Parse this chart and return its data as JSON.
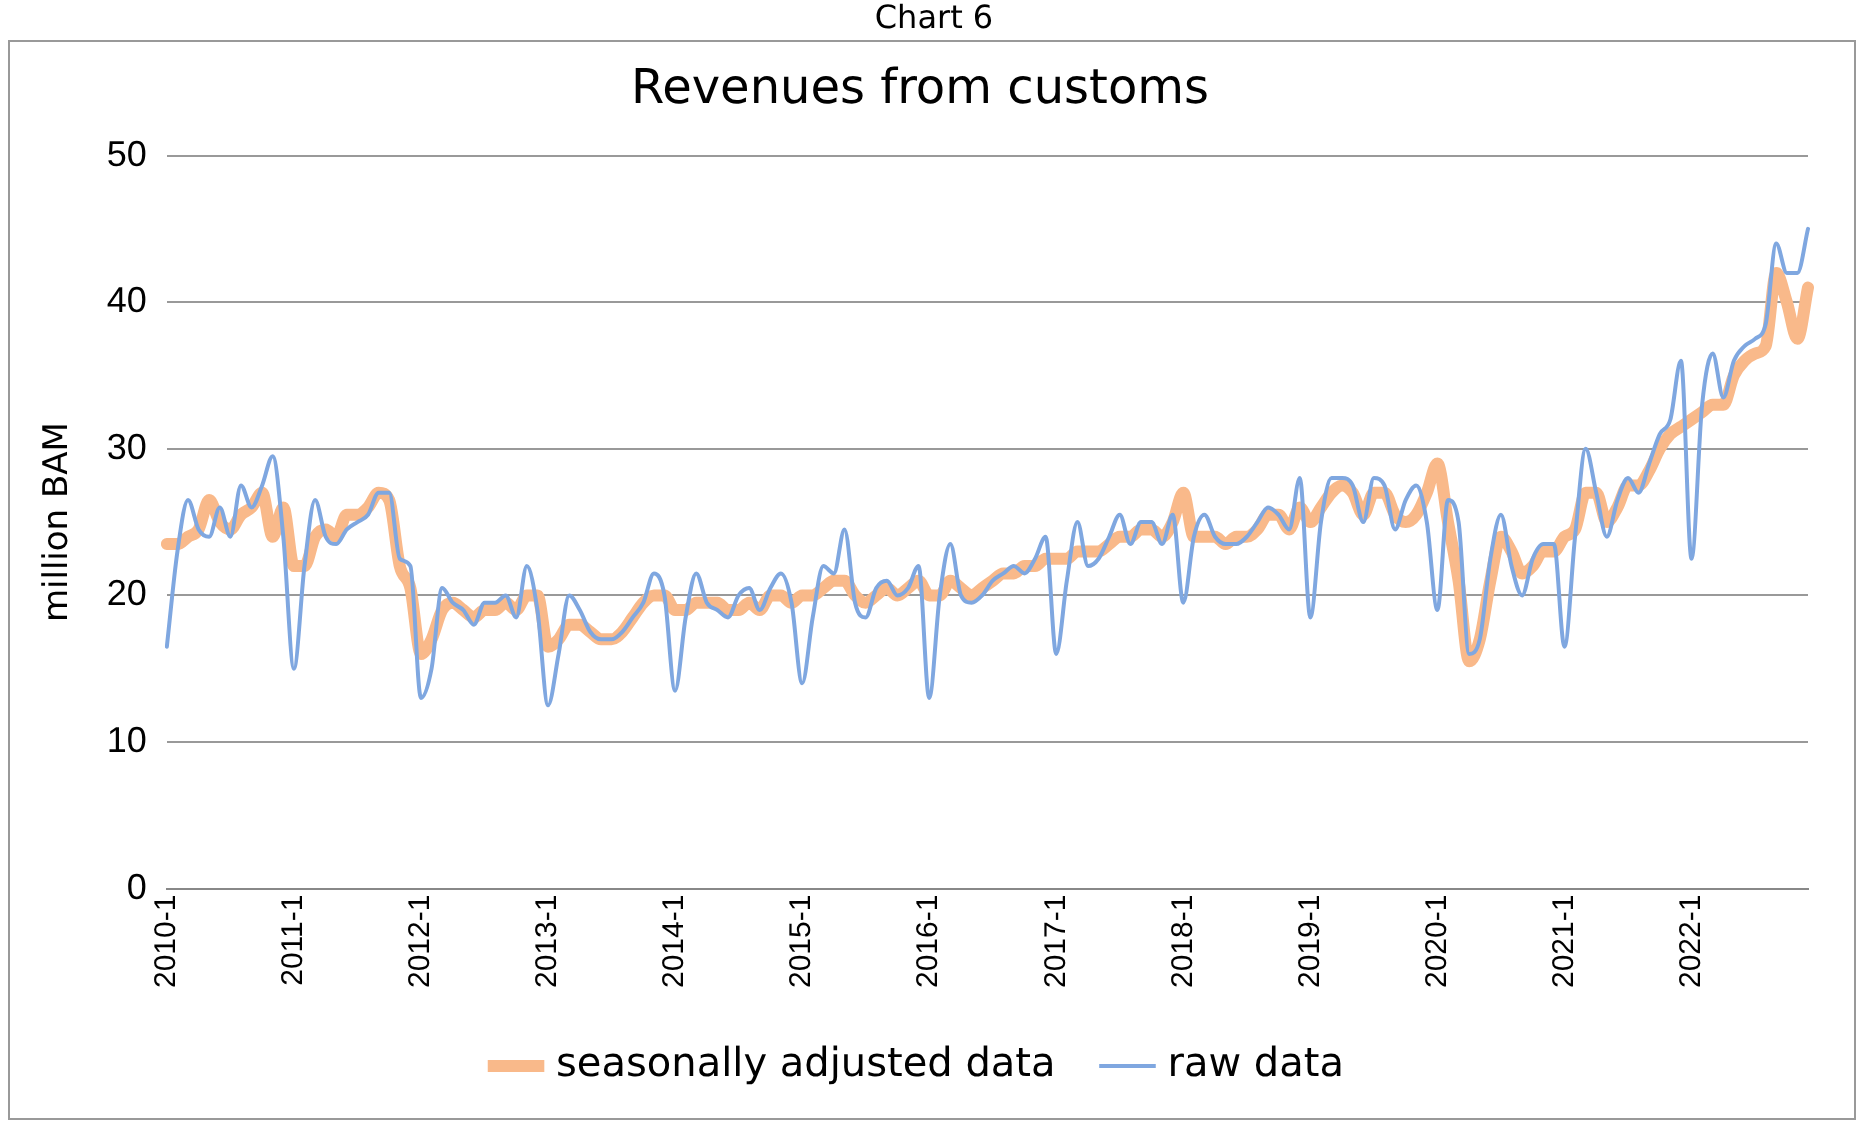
{
  "chart_data": {
    "type": "line",
    "title": "Revenues from customs",
    "ylabel": "million BAM",
    "annotations": [
      "Chart 6"
    ],
    "categories": [
      "2010-1",
      null,
      null,
      null,
      null,
      null,
      null,
      null,
      null,
      null,
      null,
      null,
      "2011-1",
      null,
      null,
      null,
      null,
      null,
      null,
      null,
      null,
      null,
      null,
      null,
      "2012-1",
      null,
      null,
      null,
      null,
      null,
      null,
      null,
      null,
      null,
      null,
      null,
      "2013-1",
      null,
      null,
      null,
      null,
      null,
      null,
      null,
      null,
      null,
      null,
      null,
      "2014-1",
      null,
      null,
      null,
      null,
      null,
      null,
      null,
      null,
      null,
      null,
      null,
      "2015-1",
      null,
      null,
      null,
      null,
      null,
      null,
      null,
      null,
      null,
      null,
      null,
      "2016-1",
      null,
      null,
      null,
      null,
      null,
      null,
      null,
      null,
      null,
      null,
      null,
      "2017-1",
      null,
      null,
      null,
      null,
      null,
      null,
      null,
      null,
      null,
      null,
      null,
      "2018-1",
      null,
      null,
      null,
      null,
      null,
      null,
      null,
      null,
      null,
      null,
      null,
      "2019-1",
      null,
      null,
      null,
      null,
      null,
      null,
      null,
      null,
      null,
      null,
      null,
      "2020-1",
      null,
      null,
      null,
      null,
      null,
      null,
      null,
      null,
      null,
      null,
      null,
      "2021-1",
      null,
      null,
      null,
      null,
      null,
      null,
      null,
      null,
      null,
      null,
      null,
      "2022-1",
      null,
      null,
      null,
      null,
      null,
      null,
      null,
      null,
      null,
      null,
      null
    ],
    "series": [
      {
        "name": "seasonally adjusted data",
        "color": "#f9b98a",
        "values": [
          23.5,
          23.5,
          24,
          24.5,
          26.5,
          25,
          24.5,
          25.5,
          26,
          27,
          24,
          26,
          22,
          22,
          24,
          24.5,
          24,
          25.5,
          25.5,
          26,
          27,
          26.5,
          22,
          20.5,
          16,
          17,
          19,
          19.5,
          19,
          18.5,
          19,
          19,
          19.5,
          19,
          20,
          20,
          16.5,
          17,
          18,
          18,
          17.5,
          17,
          17,
          17.5,
          18.5,
          19.5,
          20,
          20,
          19,
          19,
          19.5,
          19.5,
          19.5,
          19,
          19,
          19.5,
          19,
          20,
          20,
          19.5,
          20,
          20,
          20.5,
          21,
          21,
          20,
          19.5,
          20,
          20.5,
          20,
          20.5,
          21,
          20,
          20,
          21,
          20.5,
          20,
          20.5,
          21,
          21.5,
          21.5,
          22,
          22,
          22.5,
          22.5,
          22.5,
          23,
          23,
          23,
          23.5,
          24,
          24,
          24.5,
          24.5,
          24,
          25,
          27,
          24,
          24,
          24,
          23.5,
          24,
          24,
          24.5,
          25.5,
          25.5,
          24.5,
          26,
          25,
          26,
          27,
          27.5,
          27,
          25.5,
          27,
          27,
          25.5,
          25,
          25.5,
          27,
          29,
          25,
          21,
          15.5,
          17,
          21,
          24,
          23,
          21.5,
          22,
          23,
          23,
          24,
          24.5,
          27,
          27,
          25,
          26,
          27.5,
          27.5,
          28.5,
          30,
          31,
          31.5,
          32,
          32.5,
          33,
          33,
          35,
          36,
          36.5,
          37,
          42,
          40,
          37.5,
          41
        ]
      },
      {
        "name": "raw data",
        "color": "#7fa7e0",
        "values": [
          16.5,
          23,
          26.5,
          24.5,
          24,
          26,
          24,
          27.5,
          26,
          27.5,
          29.5,
          24,
          15,
          22,
          26.5,
          24,
          23.5,
          24.5,
          25,
          25.5,
          27,
          27,
          22.5,
          22,
          13,
          15,
          20.5,
          19.5,
          19,
          18,
          19.5,
          19.5,
          20,
          18.5,
          22,
          19,
          12.5,
          16,
          20,
          19,
          17.5,
          17,
          17,
          17.5,
          18.5,
          19.5,
          21.5,
          20,
          13.5,
          18.5,
          21.5,
          19.5,
          19,
          18.5,
          20,
          20.5,
          19,
          20.5,
          21.5,
          19.5,
          14,
          18.5,
          22,
          21.5,
          24.5,
          19.5,
          18.5,
          20.5,
          21,
          20,
          20.5,
          22,
          13,
          20,
          23.5,
          20,
          19.5,
          20,
          21,
          21.5,
          22,
          21.5,
          22.5,
          24,
          16,
          21,
          25,
          22,
          22.5,
          24,
          25.5,
          23.5,
          25,
          25,
          23.5,
          25.5,
          19.5,
          24,
          25.5,
          24,
          23.5,
          23.5,
          24,
          25,
          26,
          25.5,
          24.5,
          28,
          18.5,
          25,
          28,
          28,
          27.5,
          25,
          28,
          27.5,
          24.5,
          26.5,
          27.5,
          25,
          19,
          26.5,
          25,
          16,
          17,
          22.5,
          25.5,
          22,
          20,
          22.5,
          23.5,
          23.5,
          16.5,
          24,
          30,
          27,
          24,
          26.5,
          28,
          27,
          29,
          31,
          32,
          36,
          22.5,
          33,
          36.5,
          33.5,
          36,
          37,
          37.5,
          38.5,
          44,
          42,
          42,
          45
        ]
      }
    ],
    "ylim": [
      0,
      50
    ],
    "yticks": [
      0,
      10,
      20,
      30,
      40,
      50
    ],
    "grid": "y",
    "legend": "bottom",
    "marker": "none",
    "line_style": "solid"
  }
}
